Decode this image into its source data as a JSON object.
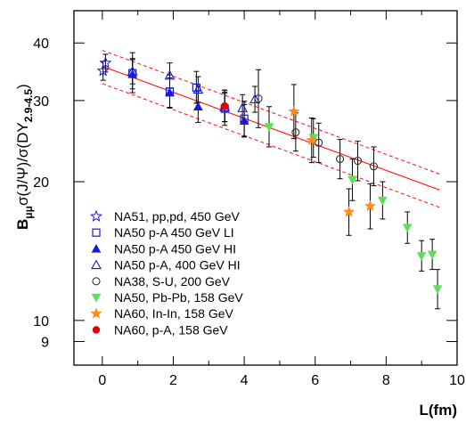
{
  "chart_data": {
    "type": "scatter",
    "xlabel": "L(fm)",
    "ylabel_parts": {
      "main": "B",
      "main_sub": "μμ",
      "body": "σ(J/Ψ)/σ(DY",
      "body_sub": "2.9-4.5",
      "close": ")"
    },
    "xlim": [
      -0.8,
      10.0
    ],
    "ylim": [
      8.0,
      47.0
    ],
    "y_scale": "log",
    "x_ticks": [
      0,
      2,
      4,
      6,
      8,
      10
    ],
    "y_ticks": [
      9,
      10,
      20,
      30,
      40
    ],
    "grid": false,
    "legend_position": "lower-left",
    "fit": {
      "a": 35.6,
      "b": -0.065
    },
    "fit_band": 0.083,
    "colors": {
      "blue": "#1a1ad6",
      "dark": "#333333",
      "green": "#5ce05c",
      "orange": "#ff8c1a",
      "red": "#e60000",
      "fit": "#ff2020",
      "error": "#000000"
    },
    "series": [
      {
        "name": "NA51, pp,pd, 450 GeV",
        "marker": "star-open",
        "color": "blue",
        "points": [
          {
            "x": 0.02,
            "y": 34.8,
            "lo": 33.2,
            "hi": 36.5
          },
          {
            "x": 0.09,
            "y": 36.2,
            "lo": 34.6,
            "hi": 37.8
          }
        ]
      },
      {
        "name": "NA50 p-A 450 GeV LI",
        "marker": "square-open",
        "color": "blue",
        "points": [
          {
            "x": 0.85,
            "y": 34.4,
            "lo": 31.2,
            "hi": 38.1
          },
          {
            "x": 1.9,
            "y": 31.4,
            "lo": 28.9,
            "hi": 34.1
          },
          {
            "x": 2.65,
            "y": 32.0,
            "lo": 29.6,
            "hi": 34.7
          },
          {
            "x": 3.45,
            "y": 28.8,
            "lo": 26.5,
            "hi": 31.3
          },
          {
            "x": 4.0,
            "y": 27.4,
            "lo": 25.1,
            "hi": 29.9
          }
        ]
      },
      {
        "name": "NA50 p-A 450 GeV HI",
        "marker": "triangle-filled",
        "color": "blue",
        "points": [
          {
            "x": 0.85,
            "y": 34.2,
            "lo": 31.8,
            "hi": 36.8
          },
          {
            "x": 1.9,
            "y": 31.2,
            "lo": 29.0,
            "hi": 33.6
          },
          {
            "x": 2.7,
            "y": 29.1,
            "lo": 26.9,
            "hi": 31.5
          },
          {
            "x": 3.45,
            "y": 29.2,
            "lo": 27.0,
            "hi": 31.6
          },
          {
            "x": 4.0,
            "y": 27.1,
            "lo": 25.0,
            "hi": 29.4
          }
        ]
      },
      {
        "name": "NA50 p-A, 400 GeV HI",
        "marker": "triangle-open",
        "color": "blue",
        "points": [
          {
            "x": 0.85,
            "y": 34.7,
            "lo": 32.6,
            "hi": 37.0
          },
          {
            "x": 1.9,
            "y": 34.0,
            "lo": 31.9,
            "hi": 36.2
          },
          {
            "x": 2.7,
            "y": 31.7,
            "lo": 29.7,
            "hi": 33.8
          },
          {
            "x": 3.45,
            "y": 29.0,
            "lo": 27.0,
            "hi": 31.1
          },
          {
            "x": 3.95,
            "y": 28.9,
            "lo": 27.0,
            "hi": 30.9
          },
          {
            "x": 4.3,
            "y": 30.2,
            "lo": 28.3,
            "hi": 32.2
          }
        ]
      },
      {
        "name": "NA38, S-U, 200 GeV",
        "marker": "circle-open",
        "color": "dark",
        "points": [
          {
            "x": 4.4,
            "y": 30.3,
            "lo": 26.2,
            "hi": 35.0
          },
          {
            "x": 5.45,
            "y": 25.6,
            "lo": 23.3,
            "hi": 28.2
          },
          {
            "x": 6.1,
            "y": 24.3,
            "lo": 22.0,
            "hi": 26.8
          },
          {
            "x": 6.7,
            "y": 22.4,
            "lo": 20.3,
            "hi": 24.7
          },
          {
            "x": 7.2,
            "y": 22.2,
            "lo": 20.1,
            "hi": 24.5
          },
          {
            "x": 7.65,
            "y": 21.6,
            "lo": 19.6,
            "hi": 23.8
          }
        ]
      },
      {
        "name": "NA50, Pb-Pb, 158 GeV",
        "marker": "triangle-down-filled",
        "color": "green",
        "points": [
          {
            "x": 4.7,
            "y": 26.3,
            "lo": 23.8,
            "hi": 29.1
          },
          {
            "x": 5.95,
            "y": 24.9,
            "lo": 22.6,
            "hi": 27.4
          },
          {
            "x": 7.05,
            "y": 20.2,
            "lo": 18.2,
            "hi": 22.4
          },
          {
            "x": 7.9,
            "y": 18.2,
            "lo": 16.6,
            "hi": 20.0
          },
          {
            "x": 8.6,
            "y": 15.9,
            "lo": 14.7,
            "hi": 17.2
          },
          {
            "x": 9.0,
            "y": 13.8,
            "lo": 12.8,
            "hi": 14.9
          },
          {
            "x": 9.3,
            "y": 13.9,
            "lo": 12.9,
            "hi": 15.0
          },
          {
            "x": 9.45,
            "y": 11.7,
            "lo": 10.6,
            "hi": 12.9
          }
        ]
      },
      {
        "name": "NA60, In-In, 158 GeV",
        "marker": "star-filled",
        "color": "orange",
        "points": [
          {
            "x": 5.4,
            "y": 28.4,
            "lo": 24.8,
            "hi": 32.5
          },
          {
            "x": 5.9,
            "y": 24.6,
            "lo": 22.0,
            "hi": 27.5
          },
          {
            "x": 6.95,
            "y": 17.2,
            "lo": 15.3,
            "hi": 19.3
          },
          {
            "x": 7.55,
            "y": 17.7,
            "lo": 15.8,
            "hi": 19.8
          }
        ]
      },
      {
        "name": "NA60, p-A, 158 GeV",
        "marker": "circle-filled",
        "color": "red",
        "points": [
          {
            "x": 3.45,
            "y": 29.2,
            "lo": 27.0,
            "hi": 31.6
          }
        ]
      }
    ]
  }
}
